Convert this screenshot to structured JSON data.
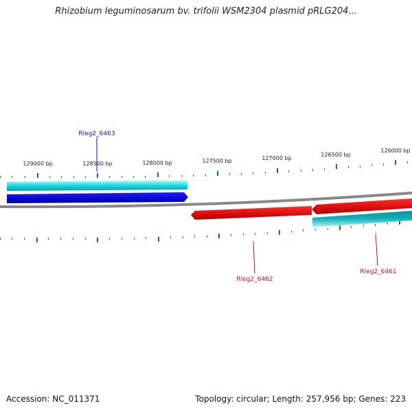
{
  "title": "Rhizobium leguminosarum bv. trifolii WSM2304 plasmid pRLG204...",
  "footer": {
    "accession": "Accession: NC_011371",
    "topology": "Topology: circular; Length: 257,956 bp; Genes: 223"
  },
  "scale_labels": [
    "129000 bp",
    "128500 bp",
    "128000 bp",
    "127500 bp",
    "127000 bp",
    "126500 bp",
    "126000 bp"
  ],
  "colors": {
    "backbone": "#888888",
    "tick": "#1a7a1a",
    "forward_gene": "#1010e0",
    "reverse_gene": "#e01010",
    "forward_cds": "#20d8e0",
    "reverse_cds": "#10a8b0",
    "label_forward": "#1010a0",
    "label_reverse": "#c01010"
  },
  "genes": [
    {
      "name": "Rleg2_6463",
      "strand": "+"
    },
    {
      "name": "Rleg2_6462",
      "strand": "-"
    },
    {
      "name": "Rleg2_6461",
      "strand": "-"
    }
  ]
}
